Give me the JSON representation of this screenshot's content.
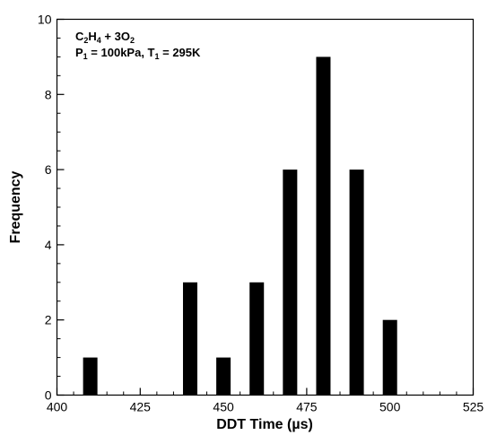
{
  "chart_data": {
    "type": "bar",
    "x": [
      410,
      440,
      450,
      460,
      470,
      480,
      490,
      500
    ],
    "values": [
      1,
      3,
      1,
      3,
      6,
      9,
      6,
      2
    ],
    "xlim": [
      400,
      525
    ],
    "ylim": [
      0,
      10
    ],
    "xticks": [
      400,
      425,
      450,
      475,
      500,
      525
    ],
    "yticks": [
      0,
      2,
      4,
      6,
      8,
      10
    ],
    "xlabel": "DDT Time (µs)",
    "ylabel": "Frequency",
    "bar_color": "#000000",
    "grid": false,
    "annotation": {
      "line1": {
        "a": "C",
        "a_sub": "2",
        "b": "H",
        "b_sub": "4",
        "c": " + 3O",
        "c_sub": "2"
      },
      "line2": {
        "a": "P",
        "a_sub": "1",
        "b": " = 100kPa, T",
        "b_sub": "1",
        "c": " = 295K"
      }
    }
  }
}
